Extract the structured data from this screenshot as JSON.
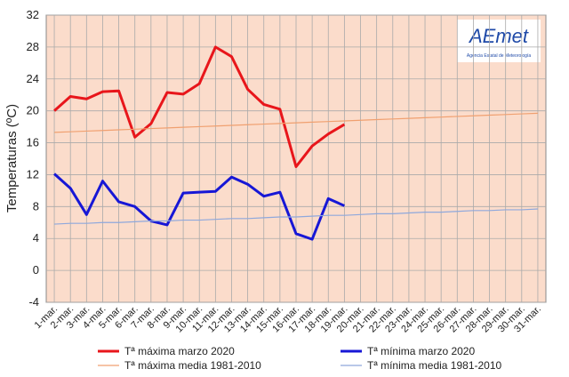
{
  "chart_data": {
    "type": "line",
    "ylabel": "Temperaturas (ºC)",
    "logo": {
      "text": "AEmet",
      "subtitle": "Agencia Estatal de Meteorología"
    },
    "categories": [
      "1-mar.",
      "2-mar.",
      "3-mar.",
      "4-mar.",
      "5-mar.",
      "6-mar.",
      "7-mar.",
      "8-mar.",
      "9-mar.",
      "10-mar.",
      "11-mar.",
      "12-mar.",
      "13-mar.",
      "14-mar.",
      "15-mar.",
      "16-mar.",
      "17-mar.",
      "18-mar.",
      "19-mar.",
      "20-mar.",
      "21-mar.",
      "22-mar.",
      "23-mar.",
      "24-mar.",
      "25-mar.",
      "26-mar.",
      "27-mar.",
      "28-mar.",
      "29-mar.",
      "30-mar.",
      "31-mar."
    ],
    "series": [
      {
        "name": "Tª máxima marzo 2020",
        "color": "#e8161b",
        "width": 3,
        "values": [
          20.0,
          21.8,
          21.5,
          22.4,
          22.5,
          16.7,
          18.4,
          22.3,
          22.1,
          23.4,
          28.0,
          26.8,
          22.7,
          20.8,
          20.2,
          13.0,
          15.6,
          17.1,
          18.3,
          null,
          null,
          null,
          null,
          null,
          null,
          null,
          null,
          null,
          null,
          null,
          null
        ]
      },
      {
        "name": "Tª mínima marzo 2020",
        "color": "#1717d6",
        "width": 3,
        "values": [
          12.1,
          10.3,
          7.0,
          11.2,
          8.6,
          8.0,
          6.2,
          5.7,
          9.7,
          9.8,
          9.9,
          11.7,
          10.8,
          9.3,
          9.8,
          4.6,
          3.9,
          9.0,
          8.1,
          null,
          null,
          null,
          null,
          null,
          null,
          null,
          null,
          null,
          null,
          null,
          null
        ]
      },
      {
        "name": "Tª máxima media 1981-2010",
        "color": "#f0a070",
        "width": 1.2,
        "values": [
          17.3,
          17.38,
          17.46,
          17.54,
          17.62,
          17.7,
          17.78,
          17.86,
          17.94,
          18.02,
          18.1,
          18.18,
          18.26,
          18.34,
          18.42,
          18.5,
          18.58,
          18.66,
          18.74,
          18.82,
          18.9,
          18.98,
          19.06,
          19.14,
          19.22,
          19.3,
          19.38,
          19.46,
          19.54,
          19.62,
          19.7
        ]
      },
      {
        "name": "Tª mínima media 1981-2010",
        "color": "#8fa8dc",
        "width": 1.2,
        "values": [
          5.8,
          5.9,
          5.9,
          6.0,
          6.0,
          6.1,
          6.2,
          6.2,
          6.3,
          6.3,
          6.4,
          6.5,
          6.5,
          6.6,
          6.7,
          6.7,
          6.8,
          6.9,
          6.9,
          7.0,
          7.1,
          7.1,
          7.2,
          7.3,
          7.3,
          7.4,
          7.5,
          7.5,
          7.6,
          7.6,
          7.7
        ]
      }
    ],
    "ylim": [
      -4,
      32
    ],
    "yticks": [
      -4,
      0,
      4,
      8,
      12,
      16,
      20,
      24,
      28,
      32
    ],
    "grid": true
  }
}
